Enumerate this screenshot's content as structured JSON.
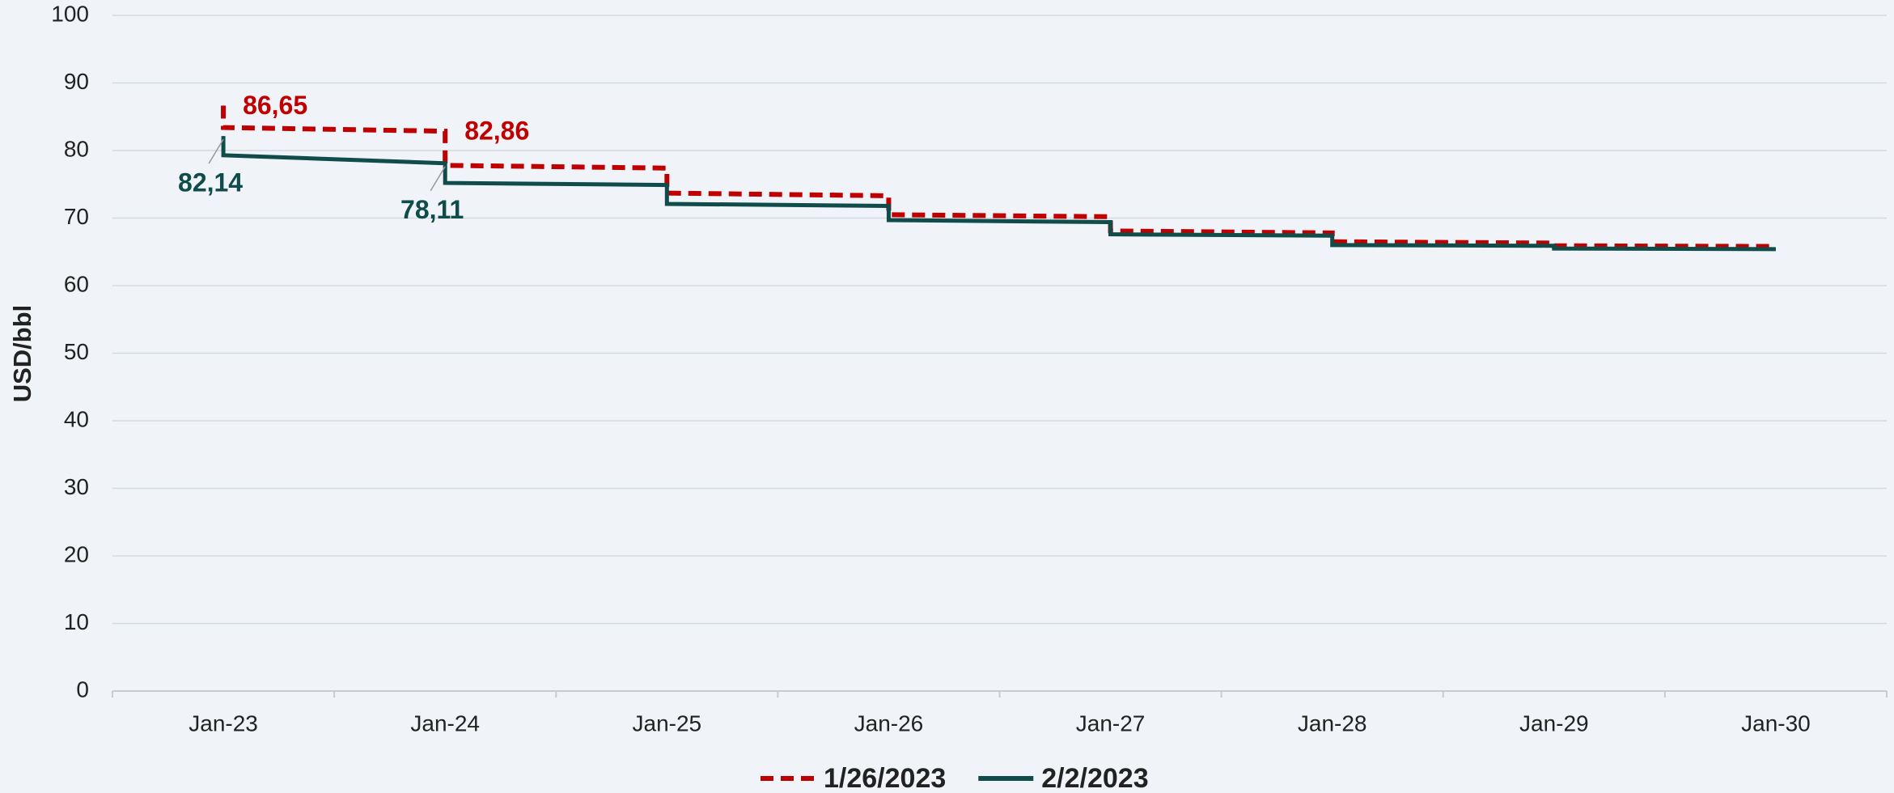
{
  "chart_data": {
    "type": "line",
    "y_label": "USD/bbl",
    "categories": [
      "Jan-23",
      "Jan-24",
      "Jan-25",
      "Jan-26",
      "Jan-27",
      "Jan-28",
      "Jan-29",
      "Jan-30"
    ],
    "x": [
      "Jan-23",
      "Jan-23",
      "Jan-24",
      "Jan-24",
      "Jan-25",
      "Jan-25",
      "Jan-26",
      "Jan-26",
      "Jan-27",
      "Jan-27",
      "Jan-28",
      "Jan-28",
      "Jan-29",
      "Jan-29",
      "Jan-30"
    ],
    "series": [
      {
        "name": "1/26/2023",
        "color": "#c00000",
        "dash": true,
        "values": [
          86.65,
          83.4,
          82.86,
          77.8,
          77.4,
          73.7,
          73.3,
          70.5,
          70.2,
          68.1,
          67.8,
          66.5,
          66.3,
          65.9,
          65.8
        ],
        "value_labels": [
          "86,65",
          null,
          "82,86",
          null,
          null,
          null,
          null,
          null,
          null,
          null,
          null,
          null,
          null,
          null,
          null
        ]
      },
      {
        "name": "2/2/2023",
        "color": "#0f4c4a",
        "dash": false,
        "values": [
          82.14,
          79.3,
          78.11,
          75.2,
          74.9,
          72.1,
          71.8,
          69.7,
          69.4,
          67.6,
          67.4,
          66.0,
          65.9,
          65.5,
          65.4
        ],
        "value_labels": [
          "82,14",
          null,
          "78,11",
          null,
          null,
          null,
          null,
          null,
          null,
          null,
          null,
          null,
          null,
          null,
          null
        ]
      }
    ],
    "ylim": [
      0,
      100
    ],
    "yticks": [
      0,
      10,
      20,
      30,
      40,
      50,
      60,
      70,
      80,
      90,
      100
    ],
    "grid": true,
    "legend": "bottom"
  }
}
